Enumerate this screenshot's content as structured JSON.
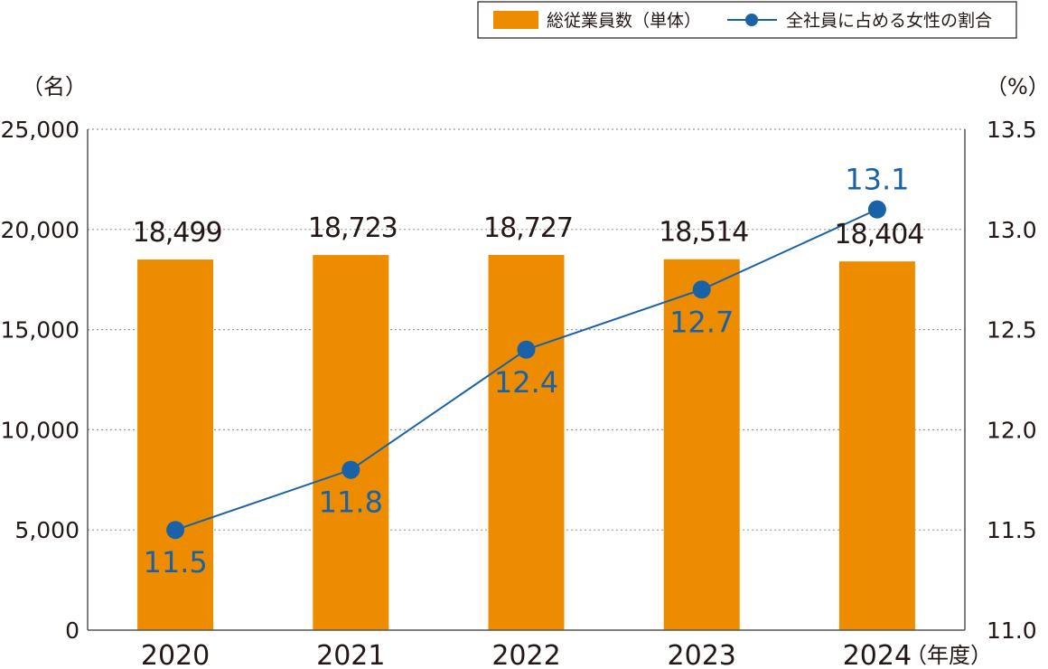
{
  "chart_data": {
    "type": "bar",
    "categories": [
      "2020",
      "2021",
      "2022",
      "2023",
      "2024"
    ],
    "x_unit": "（年度）",
    "series": [
      {
        "name": "総従業員数（単体）",
        "type": "bar",
        "axis": "left",
        "color": "#ee8c00",
        "values": [
          18499,
          18723,
          18727,
          18514,
          18404
        ],
        "labels": [
          "18,499",
          "18,723",
          "18,727",
          "18,514",
          "18,404"
        ]
      },
      {
        "name": "全社員に占める女性の割合",
        "type": "line",
        "axis": "right",
        "color": "#1a62a8",
        "values": [
          11.5,
          11.8,
          12.4,
          12.7,
          13.1
        ],
        "labels": [
          "11.5",
          "11.8",
          "12.4",
          "12.7",
          "13.1"
        ]
      }
    ],
    "y_left": {
      "unit": "（名）",
      "ylim": [
        0,
        25000
      ],
      "ticks": [
        0,
        5000,
        10000,
        15000,
        20000,
        25000
      ],
      "tick_labels": [
        "0",
        "5,000",
        "10,000",
        "15,000",
        "20,000",
        "25,000"
      ]
    },
    "y_right": {
      "unit": "（%）",
      "ylim": [
        11.0,
        13.5
      ],
      "ticks": [
        11.0,
        11.5,
        12.0,
        12.5,
        13.0,
        13.5
      ],
      "tick_labels": [
        "11.0",
        "11.5",
        "12.0",
        "12.5",
        "13.0",
        "13.5"
      ]
    },
    "grid": true,
    "legend_position": "top-right"
  },
  "colors": {
    "text": "#231815",
    "grid": "#9a9a9a",
    "axis": "#555555"
  }
}
